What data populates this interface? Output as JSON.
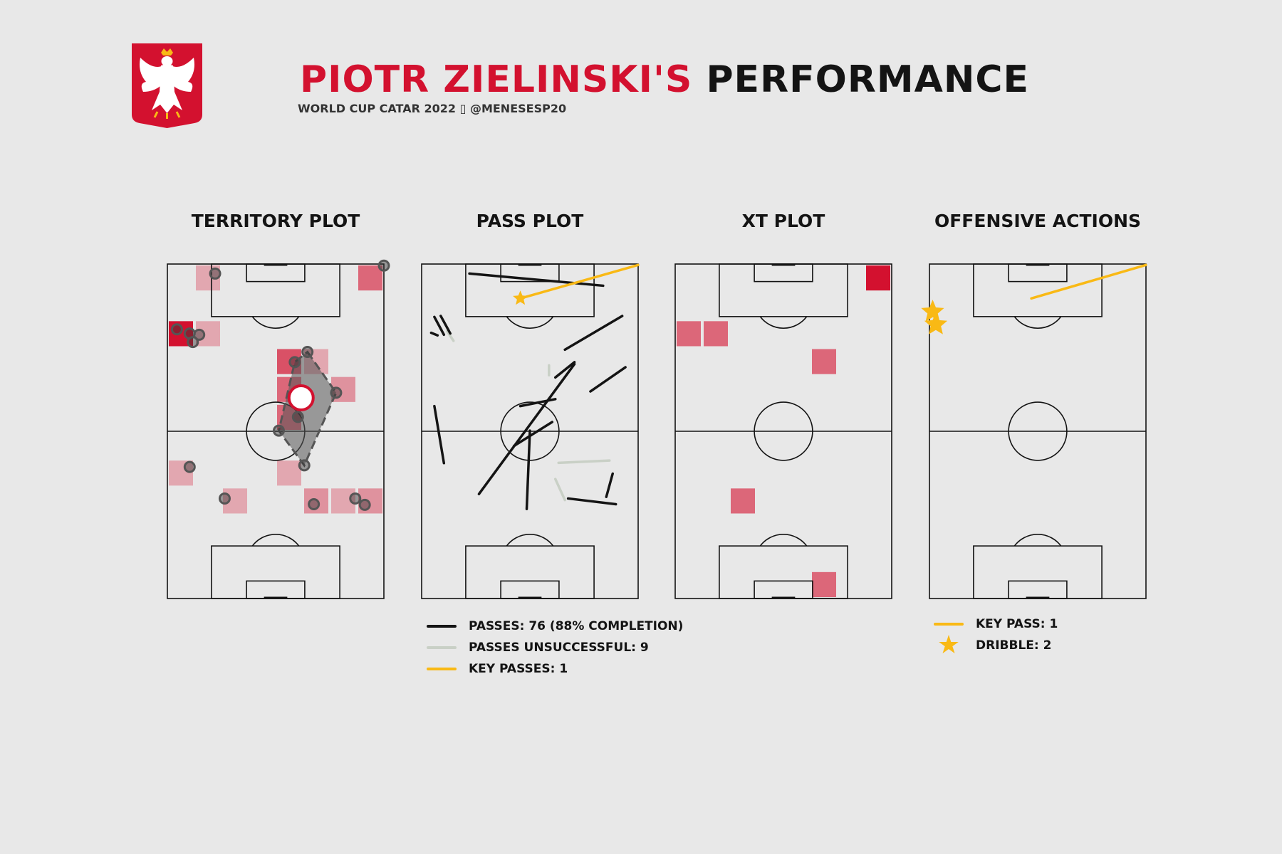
{
  "header": {
    "title_player": "PIOTR ZIELINSKI'S",
    "title_rest": "PERFORMANCE",
    "subtitle": "WORLD CUP CATAR 2022 ▯ @MENESESP20"
  },
  "colors": {
    "background": "#e8e8e8",
    "accent_red": "#d3112f",
    "line": "#141414",
    "successful_pass": "#141414",
    "unsuccessful_pass": "#c9d0c6",
    "key_pass": "#f9b915",
    "crest_white": "#ffffff"
  },
  "panels": {
    "territory": {
      "title": "TERRITORY PLOT"
    },
    "pass": {
      "title": "PASS PLOT"
    },
    "xt": {
      "title": "XT PLOT"
    },
    "offensive": {
      "title": "OFFENSIVE ACTIONS"
    }
  },
  "legends": {
    "pass": [
      {
        "label": "PASSES: 76 (88% COMPLETION)",
        "kind": "line",
        "color": "#141414"
      },
      {
        "label": "PASSES UNSUCCESSFUL: 9",
        "kind": "line",
        "color": "#c9d0c6"
      },
      {
        "label": "KEY PASSES: 1",
        "kind": "line",
        "color": "#f9b915"
      }
    ],
    "offensive": [
      {
        "label": "KEY PASS: 1",
        "kind": "line",
        "color": "#f9b915"
      },
      {
        "label": "DRIBBLE: 2",
        "kind": "star",
        "color": "#f9b915"
      }
    ]
  },
  "chart_data": [
    {
      "type": "heatmap",
      "title": "TERRITORY PLOT",
      "pitch": {
        "width": 68,
        "length": 105,
        "orientation": "vertical",
        "grid_cells": [
          8,
          12
        ]
      },
      "heat_cells": [
        {
          "col": 1,
          "row": 0,
          "intensity": 0.3
        },
        {
          "col": 7,
          "row": 0,
          "intensity": 0.6
        },
        {
          "col": 0,
          "row": 2,
          "intensity": 1.0
        },
        {
          "col": 1,
          "row": 2,
          "intensity": 0.3
        },
        {
          "col": 4,
          "row": 3,
          "intensity": 0.7
        },
        {
          "col": 5,
          "row": 3,
          "intensity": 0.3
        },
        {
          "col": 4,
          "row": 4,
          "intensity": 0.6
        },
        {
          "col": 6,
          "row": 4,
          "intensity": 0.4
        },
        {
          "col": 4,
          "row": 5,
          "intensity": 0.6
        },
        {
          "col": 0,
          "row": 7,
          "intensity": 0.3
        },
        {
          "col": 4,
          "row": 7,
          "intensity": 0.3
        },
        {
          "col": 2,
          "row": 8,
          "intensity": 0.3
        },
        {
          "col": 5,
          "row": 8,
          "intensity": 0.4
        },
        {
          "col": 6,
          "row": 8,
          "intensity": 0.3
        },
        {
          "col": 7,
          "row": 8,
          "intensity": 0.4
        }
      ],
      "touches": [
        [
          15,
          3
        ],
        [
          68,
          0.5
        ],
        [
          3,
          20.5
        ],
        [
          7,
          21.8
        ],
        [
          10,
          22.2
        ],
        [
          8,
          24.5
        ],
        [
          44,
          27.6
        ],
        [
          40,
          30.8
        ],
        [
          53,
          40.4
        ],
        [
          41,
          48
        ],
        [
          35,
          52.3
        ],
        [
          43,
          63.2
        ],
        [
          7,
          63.7
        ],
        [
          18,
          73.6
        ],
        [
          46,
          75.4
        ],
        [
          59,
          73.6
        ],
        [
          62,
          75.6
        ]
      ],
      "hull": [
        [
          44,
          27.6
        ],
        [
          53,
          40.4
        ],
        [
          43,
          63.2
        ],
        [
          35,
          52.3
        ],
        [
          40,
          30.8
        ]
      ],
      "average_position": [
        42,
        42
      ]
    },
    {
      "type": "line",
      "title": "PASS PLOT",
      "pitch": {
        "width": 68,
        "length": 105,
        "orientation": "vertical"
      },
      "successful_passes": [
        [
          15,
          3,
          57,
          6.8
        ],
        [
          4,
          16.6,
          7,
          22.2
        ],
        [
          6,
          16.3,
          9,
          21.8
        ],
        [
          3,
          21.6,
          5,
          22.4
        ],
        [
          63,
          16.3,
          45,
          26.9
        ],
        [
          48,
          30.8,
          42,
          35.6
        ],
        [
          64,
          32.4,
          53,
          40
        ],
        [
          48,
          31.4,
          18,
          72.2
        ],
        [
          42,
          42.4,
          31,
          44.6
        ],
        [
          41,
          49.6,
          29,
          57.1
        ],
        [
          34,
          52.3,
          33,
          76.9
        ],
        [
          58,
          73.1,
          60,
          65.8
        ],
        [
          46,
          73.6,
          61,
          75.4
        ],
        [
          4,
          44.6,
          7,
          62.5
        ]
      ],
      "unsuccessful_passes": [
        [
          8,
          21.1,
          10,
          24.1
        ],
        [
          40,
          31.8,
          40,
          34.9
        ],
        [
          43,
          62.4,
          59,
          61.7
        ],
        [
          42,
          67.5,
          45,
          74.1
        ]
      ],
      "key_passes": [
        [
          31,
          10.8,
          68,
          0.3
        ]
      ],
      "key_pass_marker": [
        31,
        10.8
      ]
    },
    {
      "type": "heatmap",
      "title": "XT PLOT",
      "pitch": {
        "width": 68,
        "length": 105,
        "orientation": "vertical",
        "grid_cells": [
          8,
          12
        ]
      },
      "heat_cells": [
        {
          "col": 7,
          "row": 0,
          "intensity": 1.0
        },
        {
          "col": 0,
          "row": 2,
          "intensity": 0.6
        },
        {
          "col": 1,
          "row": 2,
          "intensity": 0.6
        },
        {
          "col": 5,
          "row": 3,
          "intensity": 0.6
        },
        {
          "col": 2,
          "row": 8,
          "intensity": 0.6
        },
        {
          "col": 5,
          "row": 11,
          "intensity": 0.6
        }
      ]
    },
    {
      "type": "scatter",
      "title": "OFFENSIVE ACTIONS",
      "pitch": {
        "width": 68,
        "length": 105,
        "orientation": "vertical"
      },
      "key_passes": [
        [
          32,
          10.8,
          68,
          0.3
        ]
      ],
      "dribbles": [
        [
          1,
          15
        ],
        [
          2,
          19
        ]
      ]
    }
  ]
}
